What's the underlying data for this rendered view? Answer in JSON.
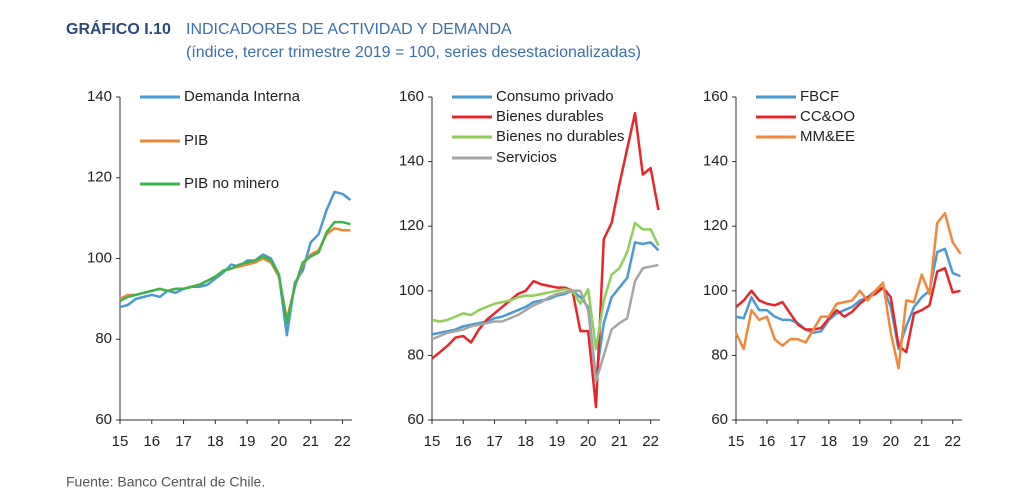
{
  "header": {
    "label": "GRÁFICO I.10",
    "title": "INDICADORES DE ACTIVIDAD Y DEMANDA",
    "subtitle": "(índice, tercer trimestre 2019 = 100, series desestacionalizadas)"
  },
  "source": "Fuente: Banco Central de Chile.",
  "chart_data": [
    {
      "type": "line",
      "x": [
        15,
        15.25,
        15.5,
        15.75,
        16,
        16.25,
        16.5,
        16.75,
        17,
        17.25,
        17.5,
        17.75,
        18,
        18.25,
        18.5,
        18.75,
        19,
        19.25,
        19.5,
        19.75,
        20,
        20.25,
        20.5,
        20.75,
        21,
        21.25,
        21.5,
        21.75,
        22,
        22.25
      ],
      "xlim": [
        15,
        22.3
      ],
      "xticks": [
        15,
        16,
        17,
        18,
        19,
        20,
        21,
        22
      ],
      "ylim": [
        60,
        140
      ],
      "yticks": [
        60,
        80,
        100,
        120,
        140
      ],
      "series": [
        {
          "name": "Demanda Interna",
          "color": "#4a9ad4",
          "values": [
            88,
            88.5,
            90,
            90.5,
            91,
            90.5,
            92,
            91.5,
            92.5,
            93,
            93,
            93.5,
            95,
            96.5,
            98.5,
            98,
            99.5,
            99.5,
            101,
            100,
            96,
            81,
            94,
            97,
            104,
            106,
            112,
            116.5,
            116,
            114.5
          ]
        },
        {
          "name": "PIB",
          "color": "#f0883a",
          "values": [
            90,
            91,
            91,
            91.5,
            92,
            92.5,
            92,
            92.5,
            92.5,
            93,
            93.5,
            94.5,
            95.5,
            97,
            97.5,
            98,
            98.5,
            99,
            100,
            99,
            95.5,
            85,
            93,
            98.5,
            101,
            102,
            106,
            107.5,
            107,
            107
          ]
        },
        {
          "name": "PIB no minero",
          "color": "#3cb44b",
          "values": [
            89.5,
            90.5,
            91,
            91.5,
            92,
            92.5,
            92,
            92.5,
            92.5,
            93,
            93.5,
            94.5,
            95.5,
            97,
            97.5,
            98.5,
            99,
            99.5,
            100.5,
            99.5,
            96,
            84,
            93,
            99,
            100.5,
            101.5,
            106.5,
            109,
            109,
            108.5
          ]
        }
      ]
    },
    {
      "type": "line",
      "x": [
        15,
        15.25,
        15.5,
        15.75,
        16,
        16.25,
        16.5,
        16.75,
        17,
        17.25,
        17.5,
        17.75,
        18,
        18.25,
        18.5,
        18.75,
        19,
        19.25,
        19.5,
        19.75,
        20,
        20.25,
        20.5,
        20.75,
        21,
        21.25,
        21.5,
        21.75,
        22,
        22.25
      ],
      "xlim": [
        15,
        22.3
      ],
      "xticks": [
        15,
        16,
        17,
        18,
        19,
        20,
        21,
        22
      ],
      "ylim": [
        60,
        160
      ],
      "yticks": [
        60,
        80,
        100,
        120,
        140,
        160
      ],
      "series": [
        {
          "name": "Consumo privado",
          "color": "#4a9ad4",
          "values": [
            86.5,
            87,
            87.5,
            88,
            89,
            89.5,
            90,
            90.5,
            91.5,
            92,
            93,
            94,
            95,
            96.5,
            97,
            97.5,
            98.5,
            99,
            100,
            98,
            95,
            73,
            90,
            98,
            101,
            104,
            115,
            114.5,
            115,
            112.5
          ]
        },
        {
          "name": "Bienes durables",
          "color": "#e8262a",
          "values": [
            79,
            81,
            83,
            85.5,
            86,
            84,
            88,
            91,
            93,
            95,
            97,
            99,
            100,
            103,
            102,
            101.5,
            101,
            101,
            100,
            87.5,
            87.5,
            64,
            116,
            121,
            133,
            144,
            155,
            136,
            138,
            125
          ]
        },
        {
          "name": "Bienes no durables",
          "color": "#8fcf5a",
          "values": [
            91,
            90.5,
            91,
            92,
            93,
            92.5,
            94,
            95,
            96,
            96.5,
            97,
            98,
            98.5,
            98.5,
            99,
            99.5,
            100,
            100.5,
            100,
            96,
            100.5,
            82,
            97,
            105,
            107,
            112,
            121,
            119,
            119,
            114
          ]
        },
        {
          "name": "Servicios",
          "color": "#a6a6a6",
          "values": [
            85,
            86,
            87,
            87.5,
            88,
            89,
            89.5,
            90,
            90.5,
            90.5,
            91.5,
            92.5,
            94,
            95.5,
            96.5,
            98,
            99,
            99.5,
            100,
            100,
            94,
            72,
            80,
            88,
            90,
            91.5,
            103,
            107,
            107.5,
            108
          ]
        }
      ]
    },
    {
      "type": "line",
      "x": [
        15,
        15.25,
        15.5,
        15.75,
        16,
        16.25,
        16.5,
        16.75,
        17,
        17.25,
        17.5,
        17.75,
        18,
        18.25,
        18.5,
        18.75,
        19,
        19.25,
        19.5,
        19.75,
        20,
        20.25,
        20.5,
        20.75,
        21,
        21.25,
        21.5,
        21.75,
        22,
        22.25
      ],
      "xlim": [
        15,
        22.3
      ],
      "xticks": [
        15,
        16,
        17,
        18,
        19,
        20,
        21,
        22
      ],
      "ylim": [
        60,
        160
      ],
      "yticks": [
        60,
        80,
        100,
        120,
        140,
        160
      ],
      "series": [
        {
          "name": "FBCF",
          "color": "#4a9ad4",
          "values": [
            92,
            91.5,
            98,
            94,
            94,
            92,
            91,
            91,
            90,
            88,
            87,
            87.5,
            91,
            93,
            94,
            95,
            97,
            98,
            100,
            101,
            95,
            82,
            89,
            95,
            98,
            100,
            112,
            113,
            105.5,
            104.5
          ]
        },
        {
          "name": "CC&OO",
          "color": "#e8262a",
          "values": [
            95,
            97,
            100,
            97,
            96,
            95.5,
            96.5,
            93,
            89.5,
            88,
            88,
            88.5,
            91.5,
            94,
            92,
            93.5,
            96,
            98,
            99,
            101,
            98,
            83,
            81,
            93,
            94,
            95.5,
            106,
            107,
            99.5,
            100
          ]
        },
        {
          "name": "MM&EE",
          "color": "#f0883a",
          "values": [
            87,
            82,
            94,
            91,
            92,
            85,
            83,
            85,
            85,
            84,
            88,
            92,
            92,
            96,
            96.5,
            97,
            100,
            97,
            100,
            102.5,
            87,
            76,
            97,
            96.5,
            105,
            99,
            121,
            124,
            115,
            111.5
          ]
        }
      ]
    }
  ]
}
